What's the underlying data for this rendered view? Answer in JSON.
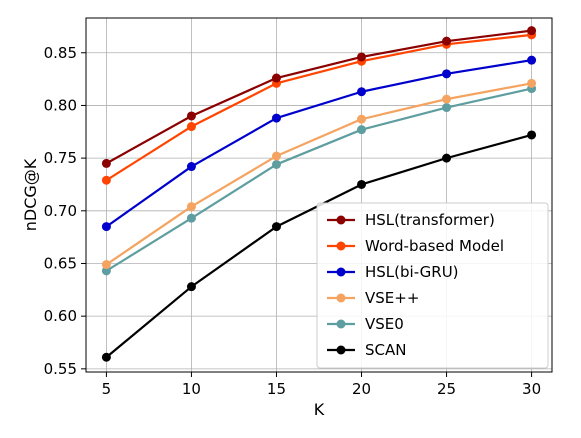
{
  "chart_data": {
    "type": "line",
    "title": "",
    "xlabel": "K",
    "ylabel": "nDCG@K",
    "x": [
      5,
      10,
      15,
      20,
      25,
      30
    ],
    "xticks": [
      "5",
      "10",
      "15",
      "20",
      "25",
      "30"
    ],
    "yticks": [
      "0.55",
      "0.60",
      "0.65",
      "0.70",
      "0.75",
      "0.80",
      "0.85"
    ],
    "xlim": [
      3.8,
      31.2
    ],
    "ylim": [
      0.547,
      0.883
    ],
    "grid": true,
    "legend_position": "lower-right",
    "series": [
      {
        "name": "HSL(transformer)",
        "color": "#8b0000",
        "values": [
          0.745,
          0.79,
          0.826,
          0.846,
          0.861,
          0.871
        ]
      },
      {
        "name": "Word-based Model",
        "color": "#ff4500",
        "values": [
          0.729,
          0.78,
          0.821,
          0.842,
          0.858,
          0.867
        ]
      },
      {
        "name": "HSL(bi-GRU)",
        "color": "#0000cd",
        "values": [
          0.685,
          0.742,
          0.788,
          0.813,
          0.83,
          0.843
        ]
      },
      {
        "name": "VSE++",
        "color": "#f4a460",
        "values": [
          0.649,
          0.704,
          0.752,
          0.787,
          0.806,
          0.821
        ]
      },
      {
        "name": "VSE0",
        "color": "#5f9ea0",
        "values": [
          0.643,
          0.693,
          0.744,
          0.777,
          0.798,
          0.816
        ]
      },
      {
        "name": "SCAN",
        "color": "#000000",
        "values": [
          0.561,
          0.628,
          0.685,
          0.725,
          0.75,
          0.772
        ]
      }
    ]
  }
}
